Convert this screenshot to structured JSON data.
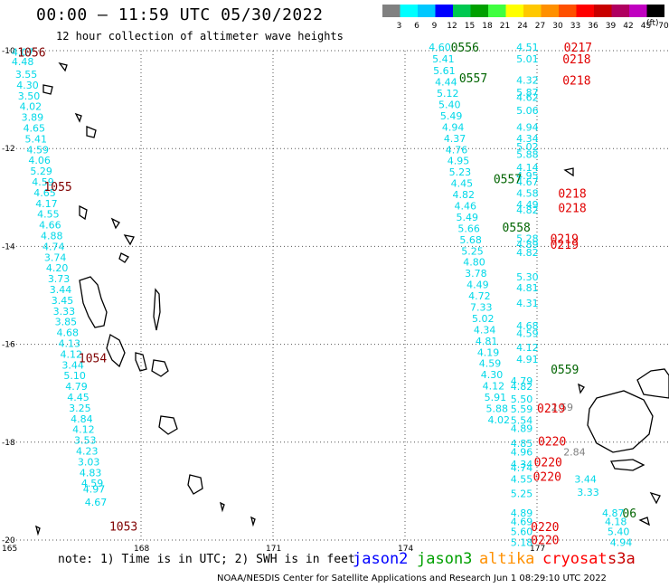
{
  "header": {
    "title": "00:00 – 11:59 UTC 05/30/2022",
    "subtitle": "12 hour collection of altimeter wave heights",
    "unit_label": "(ft)"
  },
  "color_scale": {
    "ticks": [
      "3",
      "6",
      "9",
      "12",
      "15",
      "18",
      "21",
      "24",
      "27",
      "30",
      "33",
      "36",
      "39",
      "42",
      "45",
      "70"
    ],
    "colors": [
      "#808080",
      "#00ffff",
      "#00c8ff",
      "#0000ff",
      "#00c850",
      "#00a000",
      "#40ff40",
      "#ffff00",
      "#ffc800",
      "#ff9000",
      "#ff5000",
      "#ff0000",
      "#c80000",
      "#b00060",
      "#c000c0",
      "#000000"
    ]
  },
  "axes": {
    "lat_labels": [
      "-10",
      "-12",
      "-14",
      "-16",
      "-18",
      "-20"
    ],
    "lon_labels": [
      "165",
      "168",
      "171",
      "174",
      "177"
    ]
  },
  "satellites": {
    "jason2": {
      "label": "jason2",
      "color": "#0000ff"
    },
    "jason3": {
      "label": "jason3",
      "color": "#00a000"
    },
    "altika": {
      "label": "altika",
      "color": "#ff9000"
    },
    "cryosat": {
      "label": "cryosat",
      "color": "#ff0000"
    },
    "s3a": {
      "label": "s3a",
      "color": "#c80000"
    }
  },
  "footer": {
    "note": "note: 1) Time is in UTC; 2) SWH is in feet",
    "credit": "NOAA/NESDIS Center for Satellite Applications and Research   Jun  1 08:29:10 UTC 2022"
  },
  "time_labels": [
    {
      "text": "1056",
      "lon": 165.19,
      "lat": -10.03,
      "color": "#800000"
    },
    {
      "text": "1055",
      "lon": 165.79,
      "lat": -12.77,
      "color": "#800000"
    },
    {
      "text": "1054",
      "lon": 166.58,
      "lat": -16.28,
      "color": "#800000"
    },
    {
      "text": "1053",
      "lon": 167.28,
      "lat": -19.71,
      "color": "#800000"
    },
    {
      "text": "0556",
      "lon": 175.04,
      "lat": -9.93,
      "color": "#006400"
    },
    {
      "text": "0557",
      "lon": 175.23,
      "lat": -10.55,
      "color": "#006400"
    },
    {
      "text": "0557",
      "lon": 176.01,
      "lat": -12.62,
      "color": "#006400"
    },
    {
      "text": "0558",
      "lon": 176.21,
      "lat": -13.6,
      "color": "#006400"
    },
    {
      "text": "0559",
      "lon": 177.31,
      "lat": -16.51,
      "color": "#006400"
    },
    {
      "text": "06",
      "lon": 178.94,
      "lat": -19.45,
      "color": "#006400"
    },
    {
      "text": "0217",
      "lon": 177.61,
      "lat": -9.93,
      "color": "#e00000"
    },
    {
      "text": "0218",
      "lon": 177.58,
      "lat": -10.17,
      "color": "#e00000"
    },
    {
      "text": "0218",
      "lon": 177.58,
      "lat": -10.6,
      "color": "#e00000"
    },
    {
      "text": "0218",
      "lon": 177.48,
      "lat": -12.91,
      "color": "#e00000"
    },
    {
      "text": "0218",
      "lon": 177.48,
      "lat": -13.21,
      "color": "#e00000"
    },
    {
      "text": "0219",
      "lon": 177.3,
      "lat": -13.84,
      "color": "#e00000"
    },
    {
      "text": "0219",
      "lon": 177.3,
      "lat": -13.96,
      "color": "#e00000"
    },
    {
      "text": "0219",
      "lon": 177.0,
      "lat": -17.3,
      "color": "#e00000"
    },
    {
      "text": "0220",
      "lon": 177.02,
      "lat": -17.98,
      "color": "#e00000"
    },
    {
      "text": "0220",
      "lon": 176.93,
      "lat": -18.4,
      "color": "#e00000"
    },
    {
      "text": "0220",
      "lon": 176.91,
      "lat": -18.7,
      "color": "#e00000"
    },
    {
      "text": "0220",
      "lon": 176.86,
      "lat": -19.72,
      "color": "#e00000"
    },
    {
      "text": "0220",
      "lon": 176.86,
      "lat": -19.99,
      "color": "#e00000"
    }
  ],
  "tracks": [
    {
      "name": "track-1053-1056",
      "color": "#00d8e8",
      "points": [
        {
          "v": "4.07",
          "lon": 165.06,
          "lat": -10.03
        },
        {
          "v": "4.48",
          "lon": 165.06,
          "lat": -10.22
        },
        {
          "v": "3.55",
          "lon": 165.14,
          "lat": -10.48
        },
        {
          "v": "4.30",
          "lon": 165.17,
          "lat": -10.7
        },
        {
          "v": "3.50",
          "lon": 165.2,
          "lat": -10.92
        },
        {
          "v": "4.02",
          "lon": 165.24,
          "lat": -11.14
        },
        {
          "v": "3.89",
          "lon": 165.28,
          "lat": -11.36
        },
        {
          "v": "4.65",
          "lon": 165.32,
          "lat": -11.58
        },
        {
          "v": "5.41",
          "lon": 165.36,
          "lat": -11.8
        },
        {
          "v": "4.59",
          "lon": 165.4,
          "lat": -12.02
        },
        {
          "v": "4.06",
          "lon": 165.44,
          "lat": -12.24
        },
        {
          "v": "5.29",
          "lon": 165.48,
          "lat": -12.46
        },
        {
          "v": "4.59",
          "lon": 165.52,
          "lat": -12.68
        },
        {
          "v": "4.65",
          "lon": 165.56,
          "lat": -12.9
        },
        {
          "v": "4.17",
          "lon": 165.6,
          "lat": -13.12
        },
        {
          "v": "4.55",
          "lon": 165.64,
          "lat": -13.34
        },
        {
          "v": "4.66",
          "lon": 165.68,
          "lat": -13.56
        },
        {
          "v": "4.88",
          "lon": 165.72,
          "lat": -13.78
        },
        {
          "v": "4.74",
          "lon": 165.76,
          "lat": -14.0
        },
        {
          "v": "3.74",
          "lon": 165.8,
          "lat": -14.22
        },
        {
          "v": "4.20",
          "lon": 165.84,
          "lat": -14.44
        },
        {
          "v": "3.73",
          "lon": 165.88,
          "lat": -14.66
        },
        {
          "v": "3.44",
          "lon": 165.92,
          "lat": -14.88
        },
        {
          "v": "3.45",
          "lon": 165.96,
          "lat": -15.1
        },
        {
          "v": "3.33",
          "lon": 166.0,
          "lat": -15.32
        },
        {
          "v": "3.85",
          "lon": 166.04,
          "lat": -15.54
        },
        {
          "v": "4.68",
          "lon": 166.08,
          "lat": -15.76
        },
        {
          "v": "4.13",
          "lon": 166.12,
          "lat": -15.98
        },
        {
          "v": "4.12",
          "lon": 166.16,
          "lat": -16.2
        },
        {
          "v": "3.44",
          "lon": 166.2,
          "lat": -16.42
        },
        {
          "v": "5.10",
          "lon": 166.24,
          "lat": -16.64
        },
        {
          "v": "4.79",
          "lon": 166.28,
          "lat": -16.86
        },
        {
          "v": "4.45",
          "lon": 166.32,
          "lat": -17.08
        },
        {
          "v": "3.25",
          "lon": 166.36,
          "lat": -17.3
        },
        {
          "v": "4.84",
          "lon": 166.4,
          "lat": -17.52
        },
        {
          "v": "4.12",
          "lon": 166.44,
          "lat": -17.74
        },
        {
          "v": "3.53",
          "lon": 166.48,
          "lat": -17.96
        },
        {
          "v": "4.23",
          "lon": 166.52,
          "lat": -18.18
        },
        {
          "v": "3.03",
          "lon": 166.56,
          "lat": -18.4
        },
        {
          "v": "4.83",
          "lon": 166.6,
          "lat": -18.62
        },
        {
          "v": "4.59",
          "lon": 166.64,
          "lat": -18.84
        },
        {
          "v": "4.97",
          "lon": 166.68,
          "lat": -18.96
        },
        {
          "v": "4.67",
          "lon": 166.72,
          "lat": -19.22
        }
      ]
    },
    {
      "name": "track-0556-0559",
      "color": "#00d8e8",
      "points": [
        {
          "v": "4.60",
          "lon": 174.54,
          "lat": -9.93
        },
        {
          "v": "5.41",
          "lon": 174.62,
          "lat": -10.17
        },
        {
          "v": "5.61",
          "lon": 174.64,
          "lat": -10.41
        },
        {
          "v": "4.44",
          "lon": 174.68,
          "lat": -10.64
        },
        {
          "v": "5.12",
          "lon": 174.72,
          "lat": -10.87
        },
        {
          "v": "5.40",
          "lon": 174.76,
          "lat": -11.1
        },
        {
          "v": "5.49",
          "lon": 174.8,
          "lat": -11.33
        },
        {
          "v": "4.94",
          "lon": 174.84,
          "lat": -11.56
        },
        {
          "v": "4.37",
          "lon": 174.88,
          "lat": -11.79
        },
        {
          "v": "4.76",
          "lon": 174.92,
          "lat": -12.02
        },
        {
          "v": "4.95",
          "lon": 174.96,
          "lat": -12.25
        },
        {
          "v": "5.23",
          "lon": 175.0,
          "lat": -12.48
        },
        {
          "v": "4.45",
          "lon": 175.04,
          "lat": -12.71
        },
        {
          "v": "4.82",
          "lon": 175.08,
          "lat": -12.94
        },
        {
          "v": "4.46",
          "lon": 175.12,
          "lat": -13.17
        },
        {
          "v": "5.49",
          "lon": 175.16,
          "lat": -13.4
        },
        {
          "v": "5.66",
          "lon": 175.2,
          "lat": -13.63
        },
        {
          "v": "5.68",
          "lon": 175.24,
          "lat": -13.86
        },
        {
          "v": "5.25",
          "lon": 175.28,
          "lat": -14.09
        },
        {
          "v": "4.80",
          "lon": 175.32,
          "lat": -14.32
        },
        {
          "v": "3.78",
          "lon": 175.36,
          "lat": -14.55
        },
        {
          "v": "4.49",
          "lon": 175.4,
          "lat": -14.78
        },
        {
          "v": "4.72",
          "lon": 175.44,
          "lat": -15.01
        },
        {
          "v": "7.33",
          "lon": 175.48,
          "lat": -15.24
        },
        {
          "v": "5.02",
          "lon": 175.52,
          "lat": -15.47
        },
        {
          "v": "4.34",
          "lon": 175.56,
          "lat": -15.7
        },
        {
          "v": "4.81",
          "lon": 175.6,
          "lat": -15.93
        },
        {
          "v": "4.19",
          "lon": 175.64,
          "lat": -16.16
        },
        {
          "v": "4.59",
          "lon": 175.68,
          "lat": -16.39
        },
        {
          "v": "4.30",
          "lon": 175.72,
          "lat": -16.62
        },
        {
          "v": "4.12",
          "lon": 175.76,
          "lat": -16.85
        },
        {
          "v": "5.91",
          "lon": 175.8,
          "lat": -17.08
        },
        {
          "v": "5.88",
          "lon": 175.84,
          "lat": -17.31
        },
        {
          "v": "4.02",
          "lon": 175.88,
          "lat": -17.54
        }
      ]
    },
    {
      "name": "track-0217-0220",
      "color": "#00d8e8",
      "points": [
        {
          "v": "4.51",
          "lon": 176.53,
          "lat": -9.93
        },
        {
          "v": "5.01",
          "lon": 176.53,
          "lat": -10.17
        },
        {
          "v": "4.32",
          "lon": 176.53,
          "lat": -10.6
        },
        {
          "v": "5.87",
          "lon": 176.53,
          "lat": -10.85
        },
        {
          "v": "4.62",
          "lon": 176.53,
          "lat": -10.95
        },
        {
          "v": "5.06",
          "lon": 176.53,
          "lat": -11.22
        },
        {
          "v": "4.94",
          "lon": 176.53,
          "lat": -11.56
        },
        {
          "v": "4.34",
          "lon": 176.53,
          "lat": -11.79
        },
        {
          "v": "5.02",
          "lon": 176.53,
          "lat": -11.96
        },
        {
          "v": "5.88",
          "lon": 176.53,
          "lat": -12.12
        },
        {
          "v": "4.14",
          "lon": 176.53,
          "lat": -12.38
        },
        {
          "v": "4.95",
          "lon": 176.53,
          "lat": -12.55
        },
        {
          "v": "4.67",
          "lon": 176.53,
          "lat": -12.68
        },
        {
          "v": "4.58",
          "lon": 176.53,
          "lat": -12.91
        },
        {
          "v": "4.49",
          "lon": 176.53,
          "lat": -13.14
        },
        {
          "v": "4.82",
          "lon": 176.53,
          "lat": -13.25
        },
        {
          "v": "5.28",
          "lon": 176.53,
          "lat": -13.84
        },
        {
          "v": "4.89",
          "lon": 176.53,
          "lat": -13.96
        },
        {
          "v": "4.82",
          "lon": 176.53,
          "lat": -14.12
        },
        {
          "v": "5.30",
          "lon": 176.53,
          "lat": -14.62
        },
        {
          "v": "4.81",
          "lon": 176.53,
          "lat": -14.84
        },
        {
          "v": "4.31",
          "lon": 176.53,
          "lat": -15.16
        },
        {
          "v": "4.68",
          "lon": 176.53,
          "lat": -15.62
        },
        {
          "v": "4.59",
          "lon": 176.53,
          "lat": -15.78
        },
        {
          "v": "4.12",
          "lon": 176.53,
          "lat": -16.06
        },
        {
          "v": "4.91",
          "lon": 176.53,
          "lat": -16.3
        },
        {
          "v": "4.79",
          "lon": 176.4,
          "lat": -16.75
        },
        {
          "v": "4.82",
          "lon": 176.4,
          "lat": -16.86
        },
        {
          "v": "5.50",
          "lon": 176.4,
          "lat": -17.12
        },
        {
          "v": "5.59",
          "lon": 176.4,
          "lat": -17.32
        },
        {
          "v": "5.54",
          "lon": 176.4,
          "lat": -17.55
        },
        {
          "v": "4.89",
          "lon": 176.4,
          "lat": -17.72
        },
        {
          "v": "4.85",
          "lon": 176.4,
          "lat": -18.02
        },
        {
          "v": "4.96",
          "lon": 176.4,
          "lat": -18.2
        },
        {
          "v": "4.34",
          "lon": 176.4,
          "lat": -18.45
        },
        {
          "v": "4.74",
          "lon": 176.4,
          "lat": -18.52
        },
        {
          "v": "4.55",
          "lon": 176.4,
          "lat": -18.75
        },
        {
          "v": "5.25",
          "lon": 176.4,
          "lat": -19.05
        },
        {
          "v": "4.89",
          "lon": 176.4,
          "lat": -19.45
        },
        {
          "v": "4.69",
          "lon": 176.4,
          "lat": -19.62
        },
        {
          "v": "5.60",
          "lon": 176.4,
          "lat": -19.82
        },
        {
          "v": "5.18",
          "lon": 176.4,
          "lat": -20.05
        },
        {
          "v": "3.44",
          "lon": 177.85,
          "lat": -18.75
        },
        {
          "v": "3.33",
          "lon": 177.91,
          "lat": -19.02
        },
        {
          "v": "4.87",
          "lon": 178.48,
          "lat": -19.45
        },
        {
          "v": "4.18",
          "lon": 178.54,
          "lat": -19.62
        },
        {
          "v": "5.40",
          "lon": 178.6,
          "lat": -19.82
        },
        {
          "v": "4.94",
          "lon": 178.66,
          "lat": -20.05
        }
      ]
    }
  ],
  "gray_labels": [
    {
      "v": "2.59",
      "lon": 177.32,
      "lat": -17.28
    },
    {
      "v": "2.84",
      "lon": 177.6,
      "lat": -18.2
    }
  ]
}
